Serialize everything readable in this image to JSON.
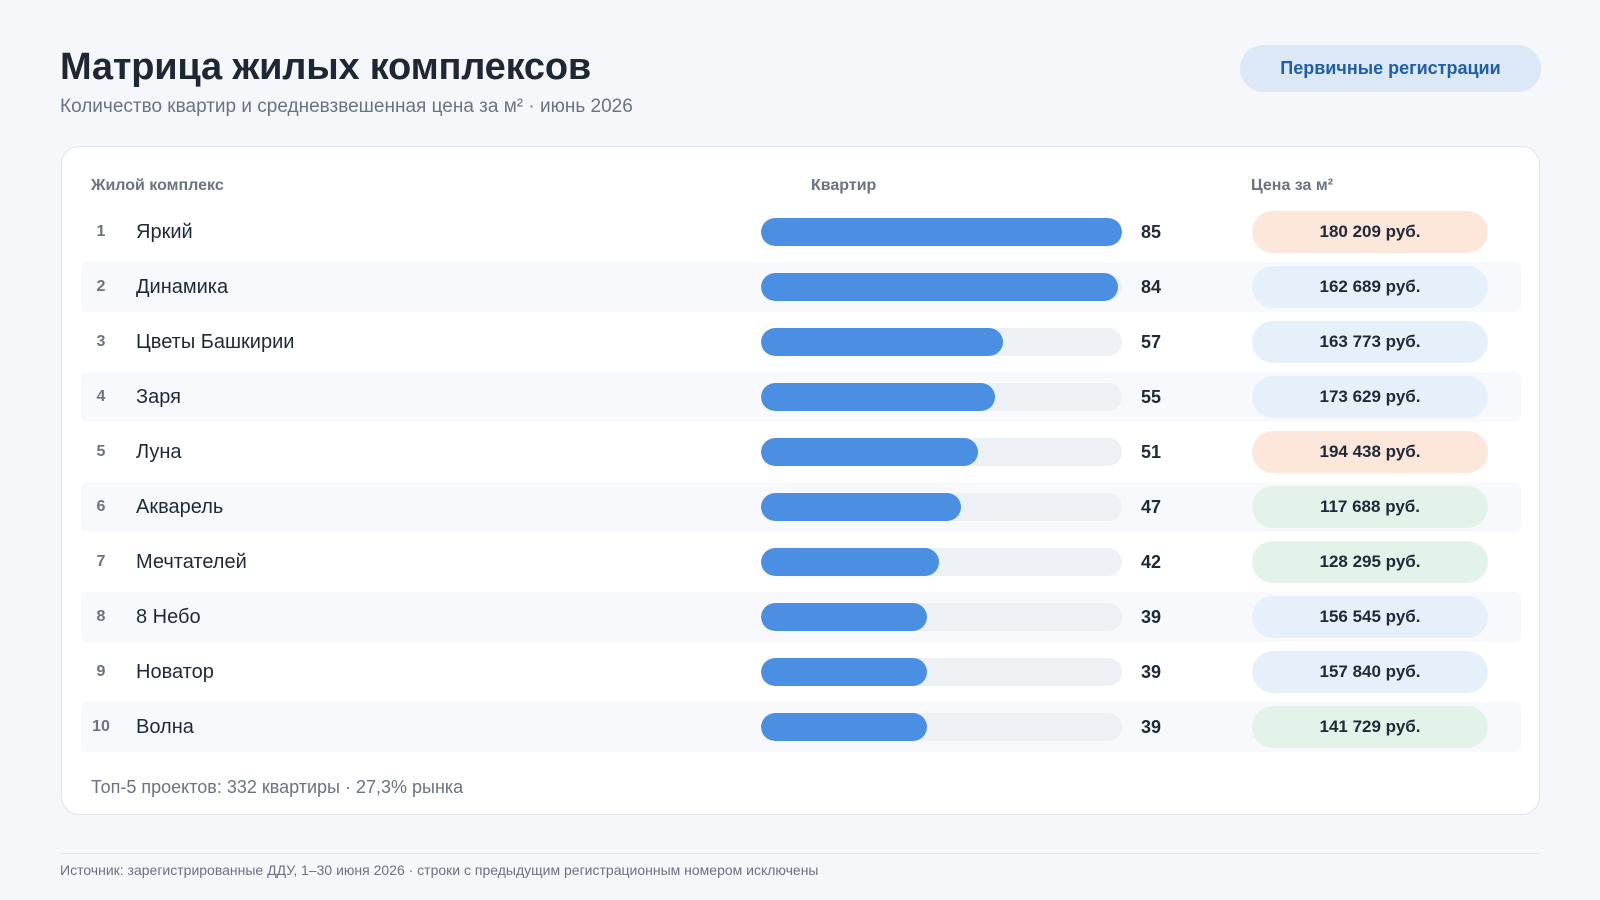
{
  "header": {
    "title": "Матрица жилых комплексов",
    "subtitle": "Количество квартир и средневзвешенная цена за м² · июнь 2026",
    "mode_button": "Первичные регистрации"
  },
  "columns": {
    "name": "Жилой комплекс",
    "qty": "Квартир",
    "price": "Цена за м²"
  },
  "colors": {
    "bar": "#4a8fe2",
    "track": "#edf1f5",
    "price_high": "#fde6da",
    "price_mid": "#e6f0fb",
    "price_low": "#e4f3ea"
  },
  "chart_data": {
    "type": "bar",
    "orientation": "horizontal",
    "xlim": [
      0,
      85
    ],
    "categories": [
      "Яркий",
      "Динамика",
      "Цветы Башкирии",
      "Заря",
      "Луна",
      "Акварель",
      "Мечтателей",
      "8 Небо",
      "Новатор",
      "Волна"
    ],
    "ranks": [
      "1",
      "2",
      "3",
      "4",
      "5",
      "6",
      "7",
      "8",
      "9",
      "10"
    ],
    "values": [
      85,
      84,
      57,
      55,
      51,
      47,
      42,
      39,
      39,
      39
    ],
    "prices": [
      "180 209 руб.",
      "162 689 руб.",
      "163 773 руб.",
      "173 629 руб.",
      "194 438 руб.",
      "117 688 руб.",
      "128 295 руб.",
      "156 545 руб.",
      "157 840 руб.",
      "141 729 руб."
    ],
    "price_levels": [
      "high",
      "mid",
      "mid",
      "mid",
      "high",
      "low",
      "low",
      "mid",
      "mid",
      "low"
    ]
  },
  "summary": "Топ-5 проектов: 332 квартиры · 27,3% рынка",
  "footer": {
    "source": "Источник: зарегистрированные ДДУ, 1–30 июня 2026 · строки с предыдущим регистрационным номером исключены"
  }
}
